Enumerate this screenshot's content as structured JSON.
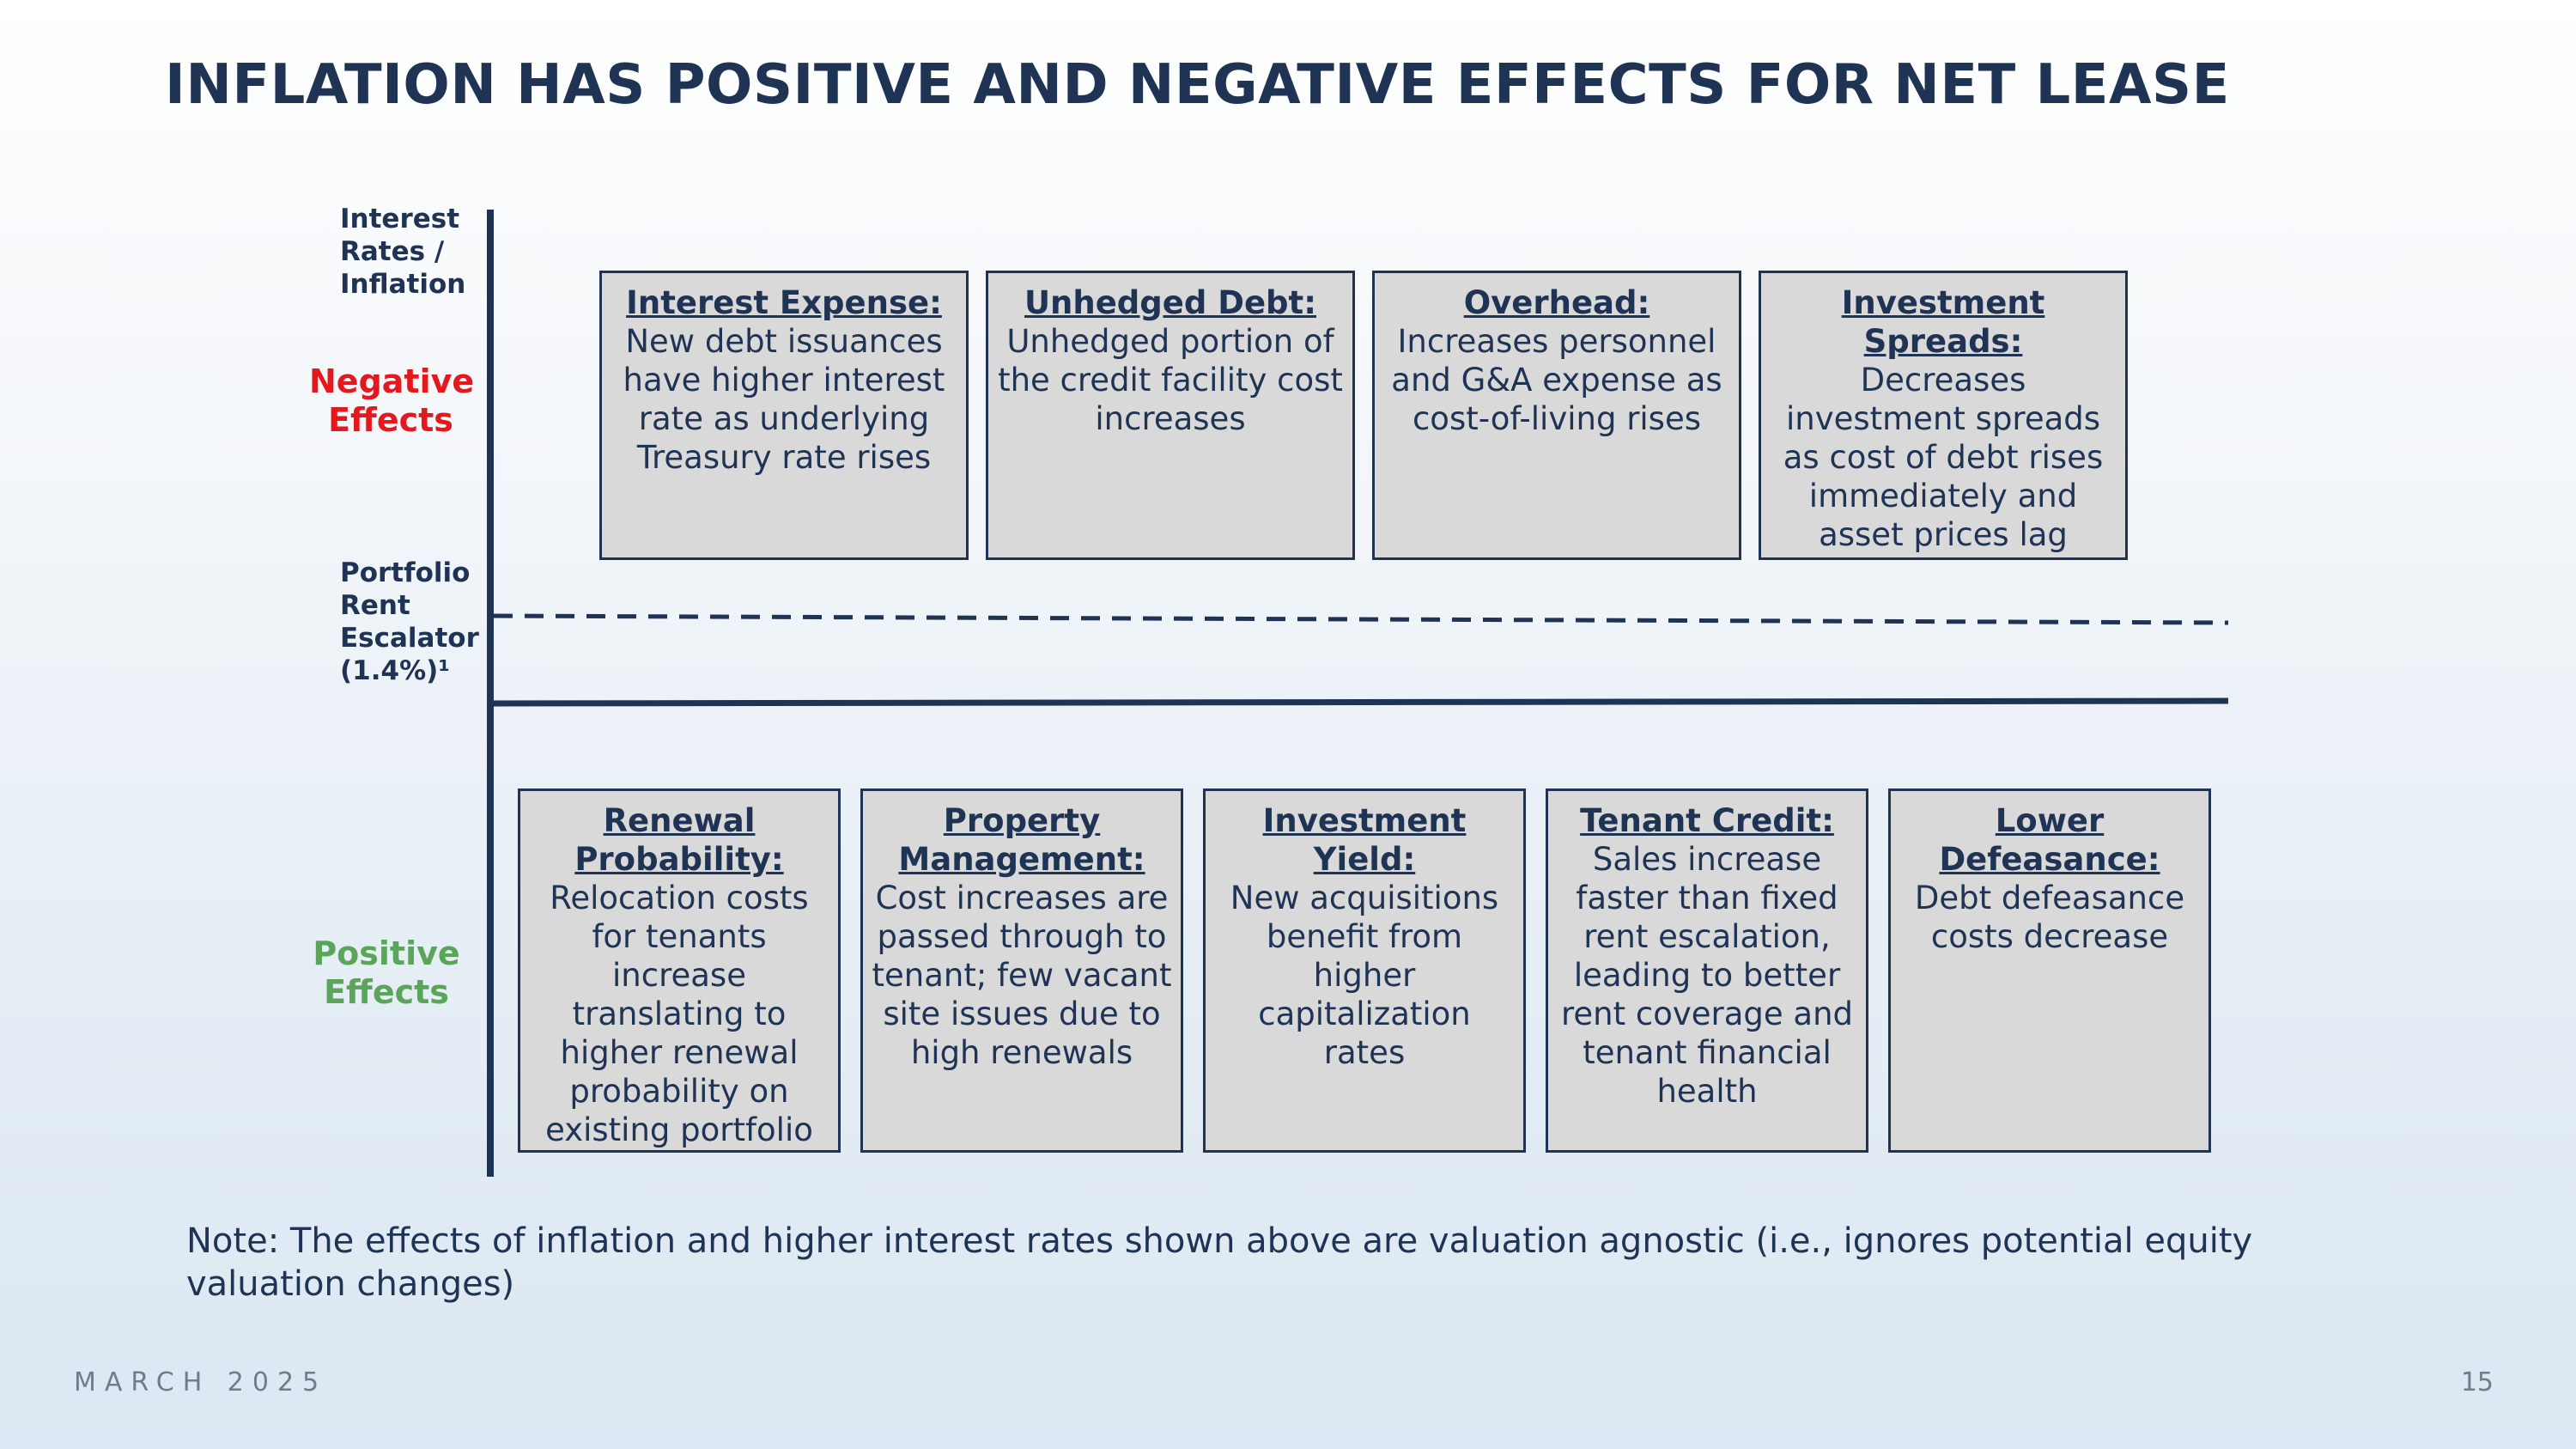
{
  "title": "INFLATION HAS POSITIVE AND NEGATIVE EFFECTS FOR NET LEASE",
  "axis": {
    "top_label": [
      "Interest",
      "Rates /",
      "Inflation"
    ],
    "escalator_label": [
      "Portfolio",
      "Rent",
      "Escalator",
      "(1.4%)¹"
    ],
    "negative_label": [
      "Negative",
      "Effects"
    ],
    "positive_label": [
      "Positive",
      "Effects"
    ]
  },
  "colors": {
    "navy": "#1f3355",
    "negative": "#e3191e",
    "positive": "#5aa55a",
    "box_fill": "#d9d9d9"
  },
  "negative_effects": [
    {
      "heading": "Interest Expense:",
      "body": "New debt issuances have higher interest rate as underlying Treasury rate rises"
    },
    {
      "heading": "Unhedged Debt:",
      "body": "Unhedged portion of the credit facility cost increases"
    },
    {
      "heading": "Overhead:",
      "body": "Increases personnel and G&A expense as cost-of-living rises"
    },
    {
      "heading": "Investment Spreads:",
      "body": "Decreases investment spreads as cost of debt rises immediately and asset prices lag"
    }
  ],
  "positive_effects": [
    {
      "heading": "Renewal Probability:",
      "body": "Relocation costs for tenants increase translating to higher renewal probability on existing portfolio"
    },
    {
      "heading": "Property Management:",
      "body": "Cost increases are passed through to tenant; few vacant site issues due to high renewals"
    },
    {
      "heading": "Investment Yield:",
      "body": "New acquisitions benefit from higher capitalization rates"
    },
    {
      "heading": "Tenant Credit:",
      "body": "Sales increase faster than fixed rent escalation, leading to better rent coverage and tenant financial health"
    },
    {
      "heading": "Lower Defeasance:",
      "body": "Debt defeasance costs decrease"
    }
  ],
  "note": "Note: The effects of inflation and higher interest rates shown above are valuation agnostic (i.e., ignores potential equity valuation changes)",
  "footer": {
    "date": "MARCH 2025",
    "page": "15"
  }
}
